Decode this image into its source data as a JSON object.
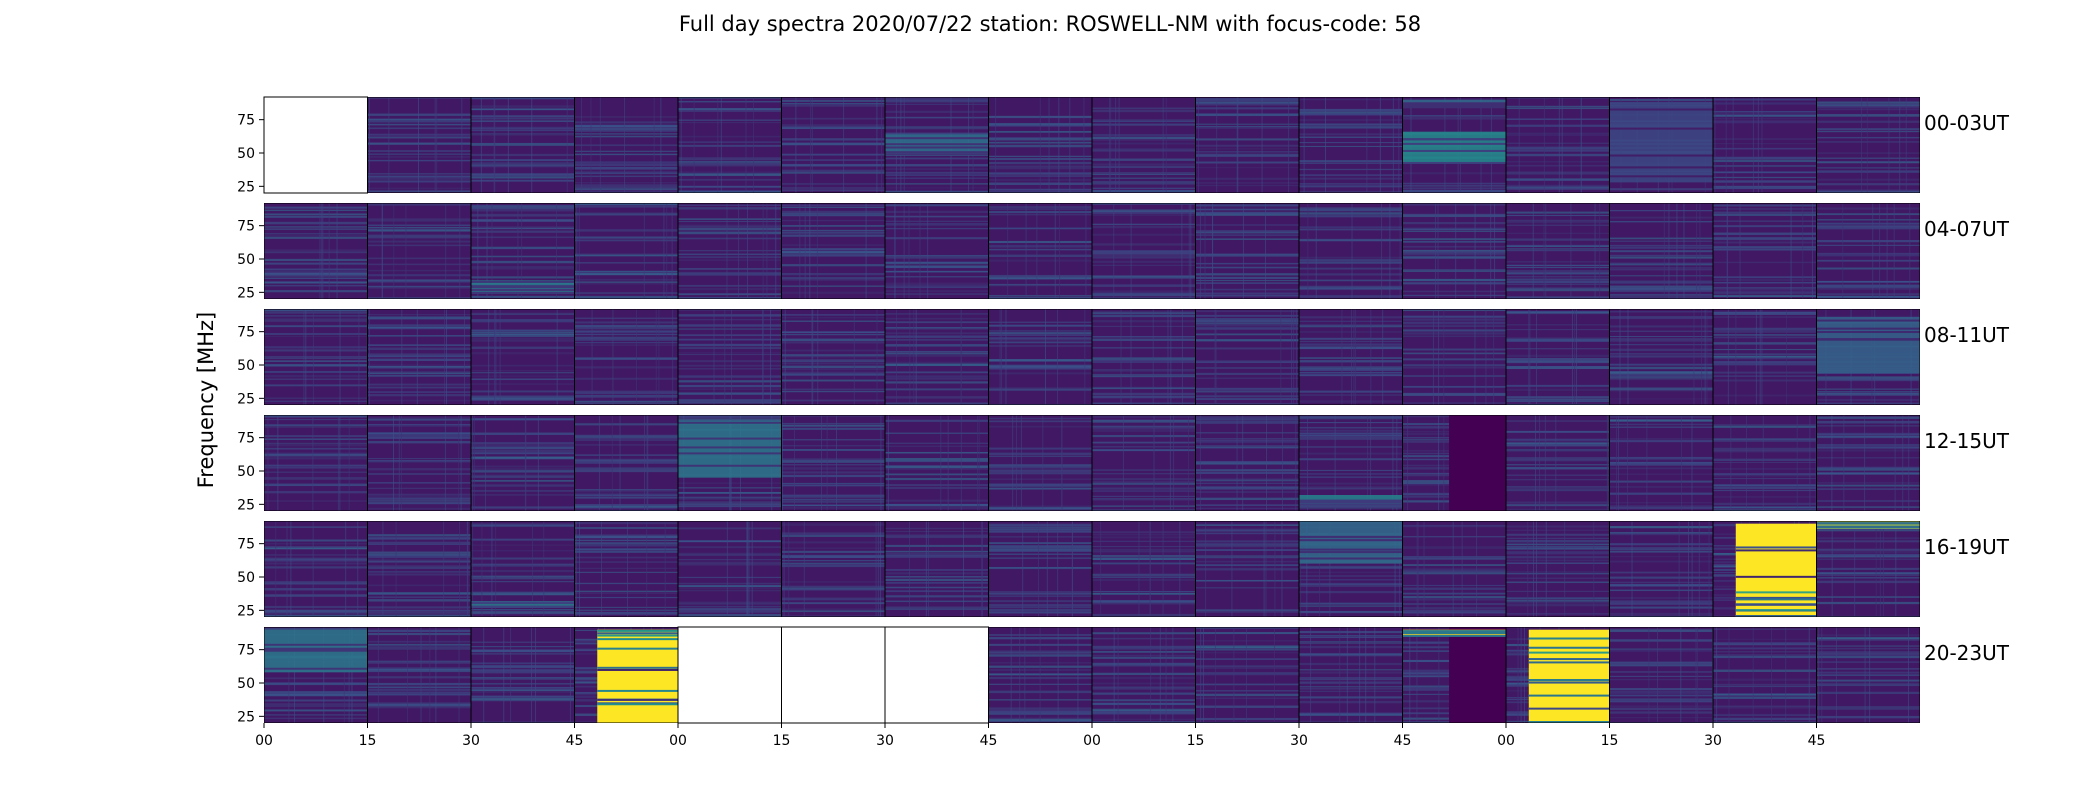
{
  "chart_data": {
    "type": "heatmap",
    "title": "Full day spectra 2020/07/22 station: ROSWELL-NM with focus-code: 58",
    "ylabel": "Frequency [MHz]",
    "xlabel": "",
    "colormap": "viridis",
    "ylim": [
      20,
      92
    ],
    "yticks": [
      25,
      50,
      75
    ],
    "xticks": [
      "00",
      "15",
      "30",
      "45",
      "00",
      "15",
      "30",
      "45",
      "00",
      "15",
      "30",
      "45",
      "00",
      "15",
      "30",
      "45"
    ],
    "panels_per_row": 16,
    "rows": [
      {
        "label": "00-03UT",
        "missing": [
          0
        ],
        "features": [
          {
            "panel": 6,
            "type": "band",
            "lo": 48,
            "hi": 64,
            "level": 0.38
          },
          {
            "panel": 11,
            "type": "band",
            "lo": 42,
            "hi": 66,
            "level": 0.48
          },
          {
            "panel": 11,
            "type": "band",
            "lo": 84,
            "hi": 90,
            "level": 0.35
          },
          {
            "panel": 13,
            "type": "band",
            "lo": 28,
            "hi": 88,
            "level": 0.22
          }
        ]
      },
      {
        "label": "04-07UT",
        "missing": [],
        "features": [
          {
            "panel": 2,
            "type": "band",
            "lo": 24,
            "hi": 34,
            "level": 0.42
          }
        ]
      },
      {
        "label": "08-11UT",
        "missing": [],
        "features": [
          {
            "panel": 15,
            "type": "band",
            "lo": 44,
            "hi": 86,
            "level": 0.32
          }
        ]
      },
      {
        "label": "12-15UT",
        "missing": [],
        "features": [
          {
            "panel": 4,
            "type": "band",
            "lo": 45,
            "hi": 88,
            "level": 0.4
          },
          {
            "panel": 10,
            "type": "band",
            "lo": 22,
            "hi": 32,
            "level": 0.45
          },
          {
            "panel": 11,
            "type": "dark",
            "lo": 20,
            "hi": 92,
            "level": 0.0
          }
        ]
      },
      {
        "label": "16-19UT",
        "missing": [],
        "features": [
          {
            "panel": 2,
            "type": "band",
            "lo": 28,
            "hi": 32,
            "level": 0.5
          },
          {
            "panel": 10,
            "type": "band",
            "lo": 60,
            "hi": 92,
            "level": 0.35
          },
          {
            "panel": 14,
            "type": "yellow",
            "lo": 20,
            "hi": 90,
            "level": 1.0
          },
          {
            "panel": 15,
            "type": "band",
            "lo": 86,
            "hi": 92,
            "level": 0.9
          }
        ]
      },
      {
        "label": "20-23UT",
        "missing": [
          4,
          5,
          6
        ],
        "features": [
          {
            "panel": 0,
            "type": "band",
            "lo": 58,
            "hi": 90,
            "level": 0.4
          },
          {
            "panel": 3,
            "type": "yellow",
            "lo": 20,
            "hi": 90,
            "level": 1.0
          },
          {
            "panel": 11,
            "type": "dark",
            "lo": 20,
            "hi": 92,
            "level": 0.0
          },
          {
            "panel": 11,
            "type": "band",
            "lo": 86,
            "hi": 90,
            "level": 1.0
          },
          {
            "panel": 12,
            "type": "yellow",
            "lo": 20,
            "hi": 90,
            "level": 1.0
          }
        ]
      }
    ]
  }
}
